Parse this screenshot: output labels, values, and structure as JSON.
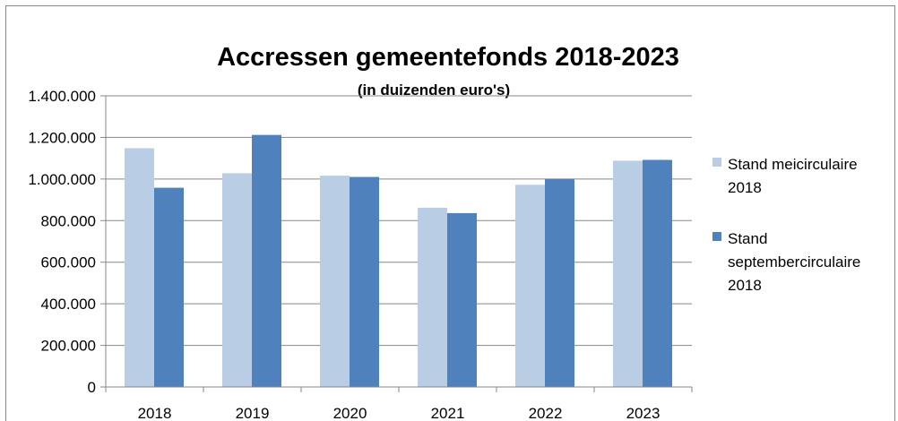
{
  "chart_data": {
    "type": "bar",
    "title": "Accressen gemeentefonds 2018-2023",
    "subtitle": "(in duizenden euro's)",
    "categories": [
      "2018",
      "2019",
      "2020",
      "2021",
      "2022",
      "2023"
    ],
    "series": [
      {
        "name": "Stand meicirculaire 2018",
        "name_lines": [
          "Stand meicirculaire",
          "2018"
        ],
        "color": "#B9CDE5",
        "values": [
          1148000,
          1028000,
          1016000,
          862000,
          972000,
          1088000
        ]
      },
      {
        "name": "Stand septembercirculaire 2018",
        "name_lines": [
          "Stand",
          "septembercirculaire",
          "2018"
        ],
        "color": "#4F81BD",
        "values": [
          958000,
          1212000,
          1010000,
          836000,
          1000000,
          1092000
        ]
      }
    ],
    "ylim": [
      0,
      1400000
    ],
    "yticks": [
      0,
      200000,
      400000,
      600000,
      800000,
      1000000,
      1200000,
      1400000
    ],
    "ytick_labels": [
      "0",
      "200.000",
      "400.000",
      "600.000",
      "800.000",
      "1.000.000",
      "1.200.000",
      "1.400.000"
    ],
    "grid": true,
    "legend": "right"
  }
}
